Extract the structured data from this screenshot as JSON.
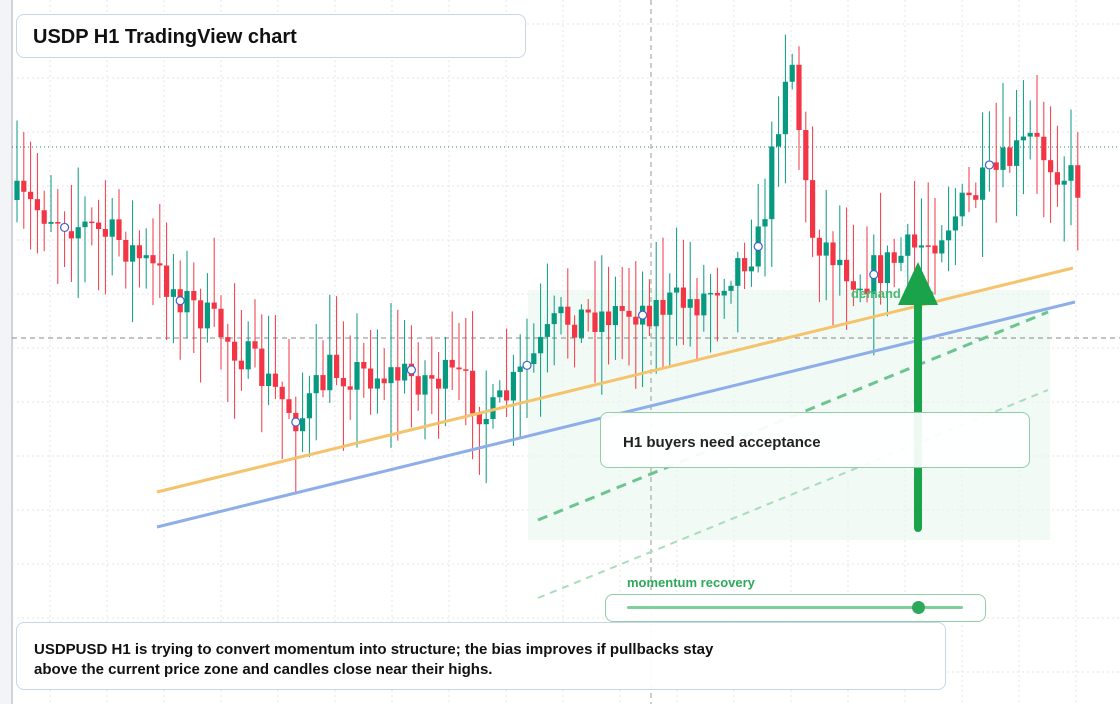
{
  "header": {
    "title": "USDP H1 TradingView chart"
  },
  "annotations": {
    "callout": "H1 buyers need acceptance",
    "zone": "demand zone",
    "slider": "momentum recovery"
  },
  "footer": {
    "lines": [
      "USDPUSD H1 is trying to convert momentum into structure; the bias improves if pullbacks stay",
      "above the current price zone and candles close near their highs."
    ]
  }
}
